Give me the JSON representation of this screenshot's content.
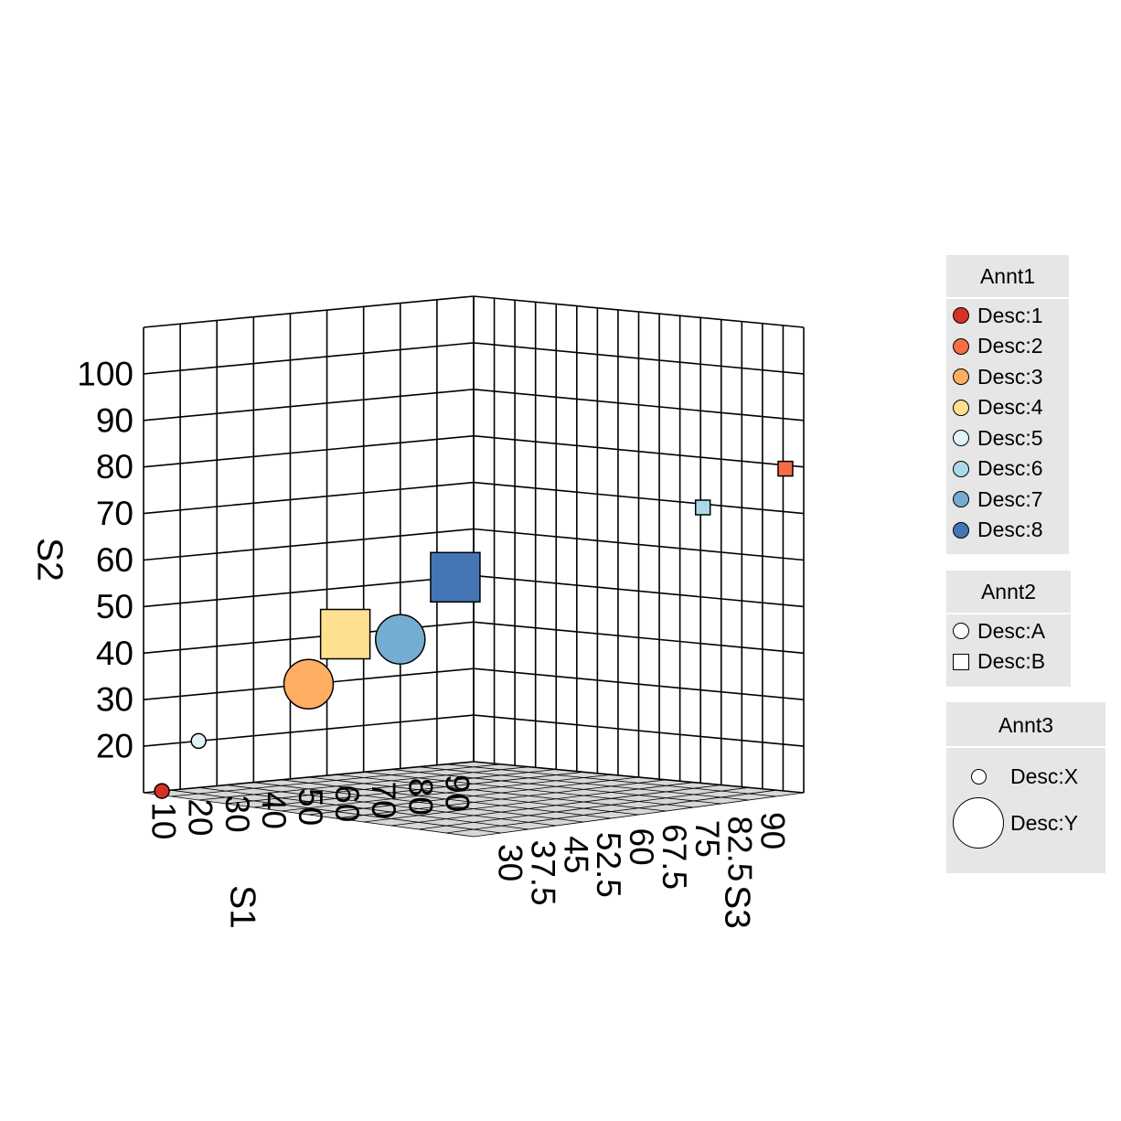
{
  "chart_data": {
    "type": "scatter",
    "axes": {
      "x": {
        "title": "S1",
        "ticks": [
          "10",
          "20",
          "30",
          "40",
          "50",
          "60",
          "70",
          "80",
          "90"
        ]
      },
      "y": {
        "title": "S2",
        "ticks": [
          "20",
          "30",
          "40",
          "50",
          "60",
          "70",
          "80",
          "90",
          "100"
        ]
      },
      "z": {
        "title": "S3",
        "ticks": [
          "30",
          "37.5",
          "45",
          "52.5",
          "60",
          "67.5",
          "75",
          "82.5",
          "90"
        ]
      }
    },
    "grid": true,
    "points": [
      {
        "s1": 10,
        "s2": 10,
        "s3": 30,
        "annt1": "Desc:1",
        "annt2": "Desc:A",
        "annt3": "Desc:X"
      },
      {
        "s1": 20,
        "s2": 20,
        "s3": 30,
        "annt1": "Desc:5",
        "annt2": "Desc:A",
        "annt3": "Desc:X"
      },
      {
        "s1": 50,
        "s2": 30,
        "s3": 30,
        "annt1": "Desc:3",
        "annt2": "Desc:A",
        "annt3": "Desc:Y"
      },
      {
        "s1": 60,
        "s2": 40,
        "s3": 40,
        "annt1": "Desc:7",
        "annt2": "Desc:A",
        "annt3": "Desc:Y"
      },
      {
        "s1": 60,
        "s2": 40,
        "s3": 30,
        "annt1": "Desc:4",
        "annt2": "Desc:B",
        "annt3": "Desc:Y"
      },
      {
        "s1": 90,
        "s2": 50,
        "s3": 30,
        "annt1": "Desc:8",
        "annt2": "Desc:B",
        "annt3": "Desc:Y"
      },
      {
        "s1": 90,
        "s2": 70,
        "s3": 75,
        "annt1": "Desc:6",
        "annt2": "Desc:B",
        "annt3": "Desc:X"
      },
      {
        "s1": 90,
        "s2": 80,
        "s3": 90,
        "annt1": "Desc:2",
        "annt2": "Desc:B",
        "annt3": "Desc:X"
      }
    ]
  },
  "legends": {
    "annt1": {
      "title": "Annt1",
      "items": [
        {
          "label": "Desc:1",
          "color": "#d73027"
        },
        {
          "label": "Desc:2",
          "color": "#f46d43"
        },
        {
          "label": "Desc:3",
          "color": "#fdae61"
        },
        {
          "label": "Desc:4",
          "color": "#fee090"
        },
        {
          "label": "Desc:5",
          "color": "#e0f3f8"
        },
        {
          "label": "Desc:6",
          "color": "#abd9e9"
        },
        {
          "label": "Desc:7",
          "color": "#74add1"
        },
        {
          "label": "Desc:8",
          "color": "#4575b4"
        }
      ]
    },
    "annt2": {
      "title": "Annt2",
      "items": [
        {
          "label": "Desc:A",
          "shape": "circle"
        },
        {
          "label": "Desc:B",
          "shape": "square"
        }
      ]
    },
    "annt3": {
      "title": "Annt3",
      "items": [
        {
          "label": "Desc:X",
          "size": "small"
        },
        {
          "label": "Desc:Y",
          "size": "large"
        }
      ]
    }
  }
}
